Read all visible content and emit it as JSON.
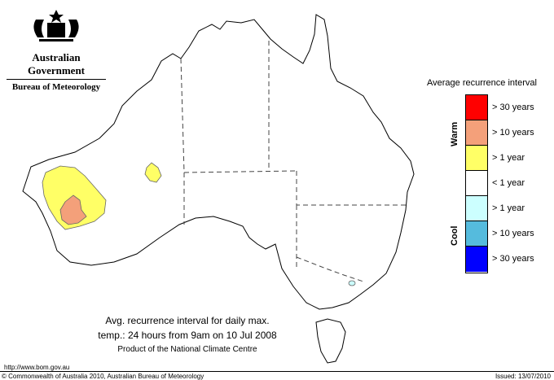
{
  "header": {
    "government": "Australian Government",
    "agency": "Bureau of Meteorology"
  },
  "legend": {
    "title": "Average recurrence interval",
    "warm_label": "Warm",
    "cool_label": "Cool",
    "items": [
      {
        "label": "> 30 years",
        "color": "#ff0000"
      },
      {
        "label": "> 10 years",
        "color": "#f4a07a"
      },
      {
        "label": "> 1 year",
        "color": "#ffff66"
      },
      {
        "label": "< 1 year",
        "color": "#ffffff"
      },
      {
        "label": "> 1 year",
        "color": "#ccffff"
      },
      {
        "label": "> 10 years",
        "color": "#55bbdd"
      },
      {
        "label": "> 30 years",
        "color": "#0000ff"
      }
    ]
  },
  "caption": {
    "line1": "Avg. recurrence interval for daily max.",
    "line2": "temp.: 24 hours from 9am on 10 Jul 2008",
    "line3": "Product of the National Climate Centre"
  },
  "footer": {
    "url": "http://www.bom.gov.au",
    "copyright": "© Commonwealth of Australia 2010, Australian Bureau of Meteorology",
    "issued": "Issued: 13/07/2010"
  }
}
